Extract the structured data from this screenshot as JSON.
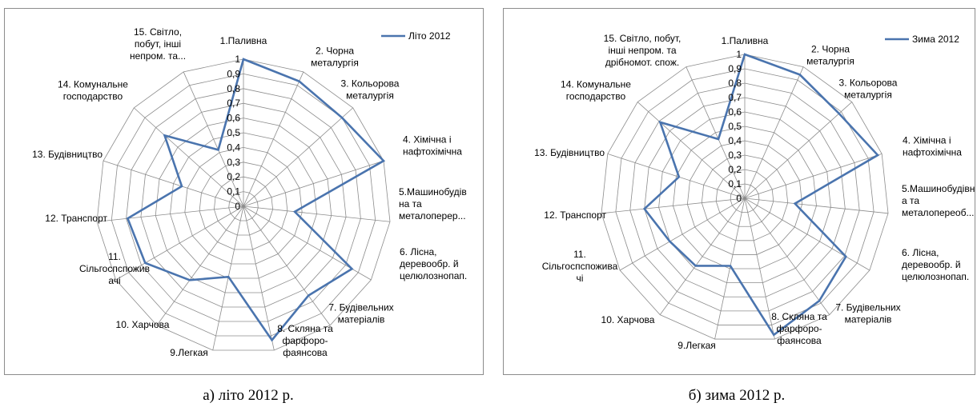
{
  "chart_data": [
    {
      "type": "radar",
      "categories": [
        "1.Паливна",
        "2. Чорна металургія",
        "3. Кольорова металургія",
        "4. Хімічна і нафтохімічна",
        "5.Машинобудівна та металоперер...",
        "6. Лісна, деревообр. й целюлознопап.",
        "7. Будівельних матеріалів",
        "8. Скляна та фарфоро-фаянсова",
        "9.Легкая",
        "10. Харчова",
        "11. Сільгоспспоживачі",
        "12. Транспорт",
        "13. Будівництво",
        "14. Комунальне господарство",
        "15. Світло, побут, інші непром. та..."
      ],
      "category_lines": [
        [
          "1.Паливна"
        ],
        [
          "2. Чорна",
          "металургія"
        ],
        [
          "3. Кольорова",
          "металургія"
        ],
        [
          "4. Хімічна і",
          "нафтохімічна"
        ],
        [
          "5.Машинобудів",
          "на та",
          "металоперер..."
        ],
        [
          "6. Лісна,",
          "деревообр. й",
          "целюлознопап."
        ],
        [
          "7. Будівельних",
          "матеріалів"
        ],
        [
          "8. Скляна та",
          "фарфоро-",
          "фаянсова"
        ],
        [
          "9.Легкая"
        ],
        [
          "10. Харчова"
        ],
        [
          "11.",
          "Сільгоспспожив",
          "ачі"
        ],
        [
          "12. Транспорт"
        ],
        [
          "13. Будівництво"
        ],
        [
          "14. Комунальне",
          "господарство"
        ],
        [
          "15. Світло,",
          "побут, інші",
          "непром. та..."
        ]
      ],
      "series": [
        {
          "name": "Літо 2012",
          "values": [
            1.0,
            0.93,
            0.9,
            1.0,
            0.35,
            0.85,
            0.75,
            0.93,
            0.49,
            0.62,
            0.77,
            0.79,
            0.44,
            0.72,
            0.42
          ]
        }
      ],
      "ticks": [
        "0",
        "0,1",
        "0,2",
        "0,3",
        "0,4",
        "0,5",
        "0,6",
        "0,7",
        "0,8",
        "0,9",
        "1"
      ],
      "rlim": [
        0,
        1
      ],
      "grid": true,
      "legend": "top-right",
      "colors": {
        "series": "#4a74ae",
        "grid": "#8c8c8c"
      }
    },
    {
      "type": "radar",
      "categories": [
        "1.Паливна",
        "2. Чорна металургія",
        "3. Кольорова металургія",
        "4. Хімічна і нафтохімічна",
        "5.Машинобудівна та металопереоб...",
        "6. Лісна, деревообр. й целюлознопап.",
        "7. Будівельних матеріалів",
        "8. Скляна та фарфоро-фаянсова",
        "9.Легкая",
        "10. Харчова",
        "11. Сільгоспспоживачі",
        "12. Транспорт",
        "13. Будівництво",
        "14. Комунальне господарство",
        "15. Світло, побут, інші непром. та дрібномот. спож."
      ],
      "category_lines": [
        [
          "1.Паливна"
        ],
        [
          "2. Чорна",
          "металургія"
        ],
        [
          "3. Кольорова",
          "металургія"
        ],
        [
          "4. Хімічна і",
          "нафтохімічна"
        ],
        [
          "5.Машинобудівн",
          "а та",
          "металопереоб..."
        ],
        [
          "6. Лісна,",
          "деревообр. й",
          "целюлознопап."
        ],
        [
          "7. Будівельних",
          "матеріалів"
        ],
        [
          "8. Скляна та",
          "фарфоро-",
          "фаянсова"
        ],
        [
          "9.Легкая"
        ],
        [
          "10. Харчова"
        ],
        [
          "11.",
          "Сільгоспспожива",
          "чі"
        ],
        [
          "12. Транспорт"
        ],
        [
          "13. Будівництво"
        ],
        [
          "14. Комунальне",
          "господарство"
        ],
        [
          "15. Світло, побут,",
          "інші непром. та",
          "дрібномот. спож."
        ]
      ],
      "series": [
        {
          "name": "Зима 2012",
          "values": [
            1.0,
            0.94,
            0.88,
            0.97,
            0.35,
            0.81,
            0.88,
            0.97,
            0.48,
            0.58,
            0.6,
            0.7,
            0.48,
            0.79,
            0.45
          ]
        }
      ],
      "ticks": [
        "0",
        "0,1",
        "0,2",
        "0,3",
        "0,4",
        "0,5",
        "0,6",
        "0,7",
        "0,8",
        "0,9",
        "1"
      ],
      "rlim": [
        0,
        1
      ],
      "grid": true,
      "legend": "top-right",
      "colors": {
        "series": "#4a74ae",
        "grid": "#8c8c8c"
      }
    }
  ],
  "captions": [
    "а) літо 2012 р.",
    "б) зима 2012 р."
  ]
}
